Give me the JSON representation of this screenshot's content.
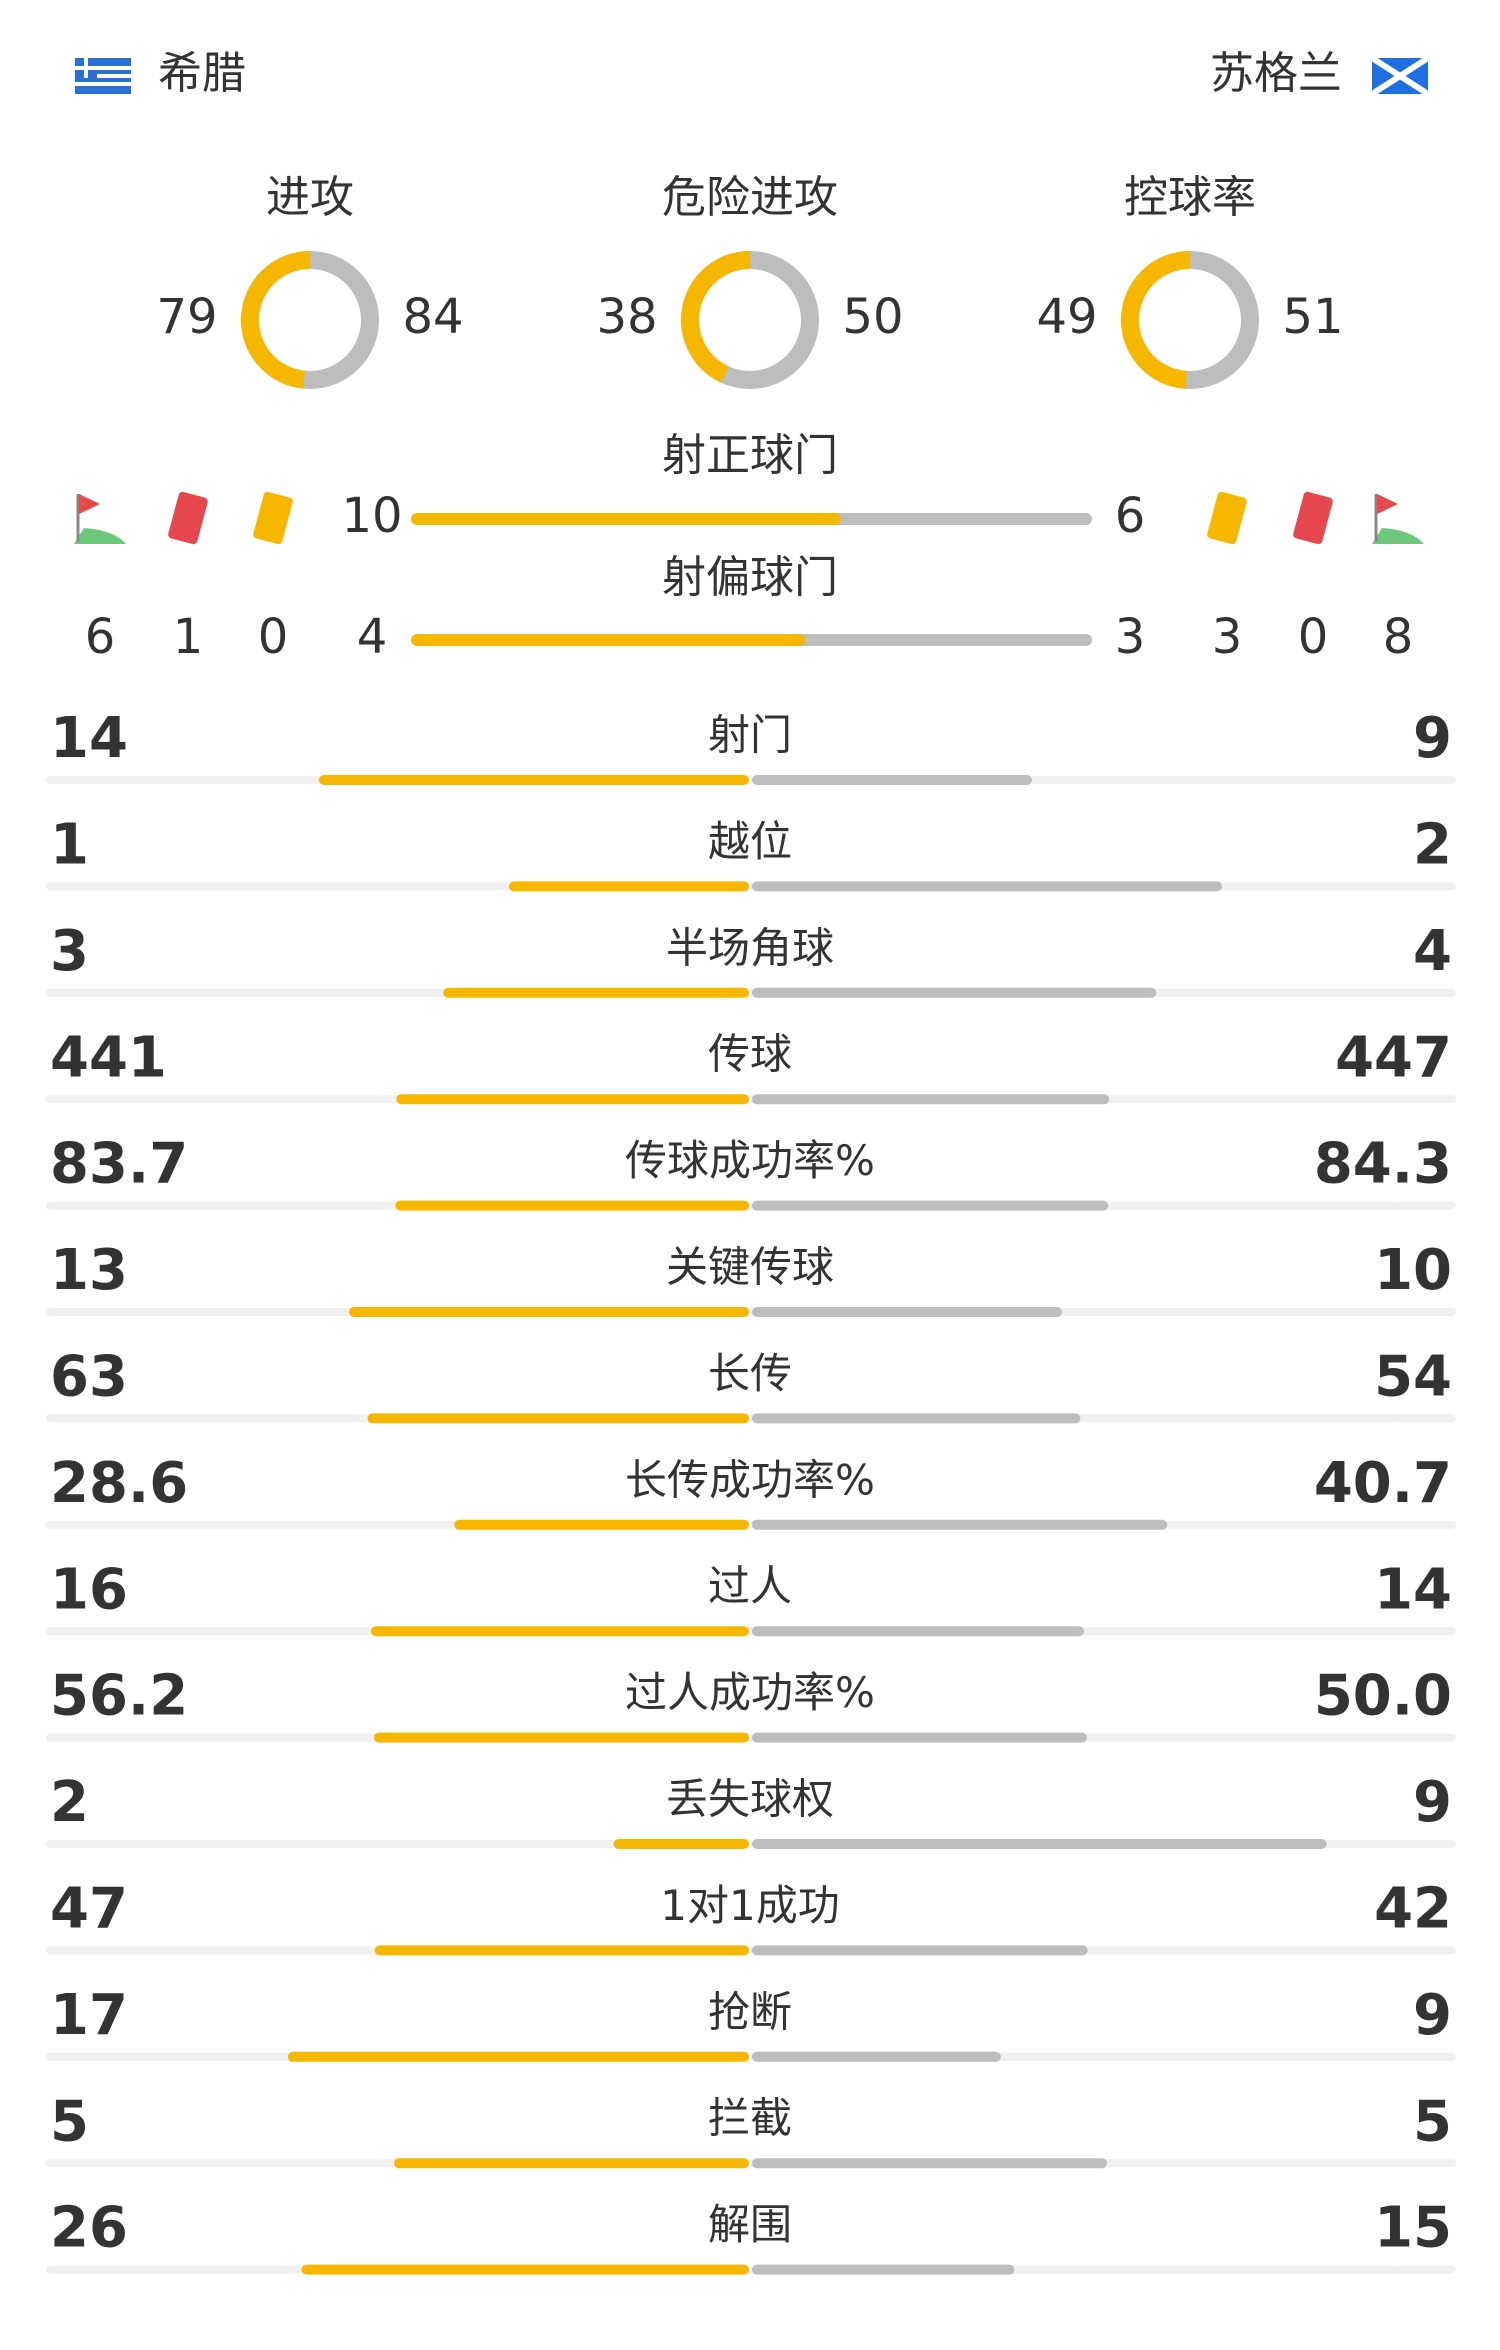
{
  "header": {
    "home": "希腊",
    "away": "苏格兰"
  },
  "rings": [
    {
      "label": "进攻",
      "home": 79,
      "away": 84
    },
    {
      "label": "危险进攻",
      "home": 38,
      "away": 50
    },
    {
      "label": "控球率",
      "home": 49,
      "away": 51
    }
  ],
  "shots": [
    {
      "label": "射正球门",
      "home": 10,
      "away": 6
    },
    {
      "label": "射偏球门",
      "home": 4,
      "away": 3
    }
  ],
  "discipline": {
    "home": {
      "corners": 6,
      "red": 1,
      "yellow": 0
    },
    "away": {
      "yellow": 3,
      "red": 0,
      "corners": 8
    }
  },
  "stats": [
    {
      "label": "射门",
      "home": 14,
      "away": 9
    },
    {
      "label": "越位",
      "home": 1,
      "away": 2
    },
    {
      "label": "半场角球",
      "home": 3,
      "away": 4
    },
    {
      "label": "传球",
      "home": 441,
      "away": 447
    },
    {
      "label": "传球成功率%",
      "home": 83.7,
      "away": 84.3
    },
    {
      "label": "关键传球",
      "home": 13,
      "away": 10
    },
    {
      "label": "长传",
      "home": 63,
      "away": 54
    },
    {
      "label": "长传成功率%",
      "home": 28.6,
      "away": 40.7
    },
    {
      "label": "过人",
      "home": 16,
      "away": 14
    },
    {
      "label": "过人成功率%",
      "home": 56.2,
      "away": {
        "value": 50,
        "label": "50.0"
      }
    },
    {
      "label": "丢失球权",
      "home": 2,
      "away": 9
    },
    {
      "label": "1对1成功",
      "home": 47,
      "away": 42
    },
    {
      "label": "抢断",
      "home": 17,
      "away": 9
    },
    {
      "label": "拦截",
      "home": 5,
      "away": 5
    },
    {
      "label": "解围",
      "home": 26,
      "away": 15
    }
  ]
}
